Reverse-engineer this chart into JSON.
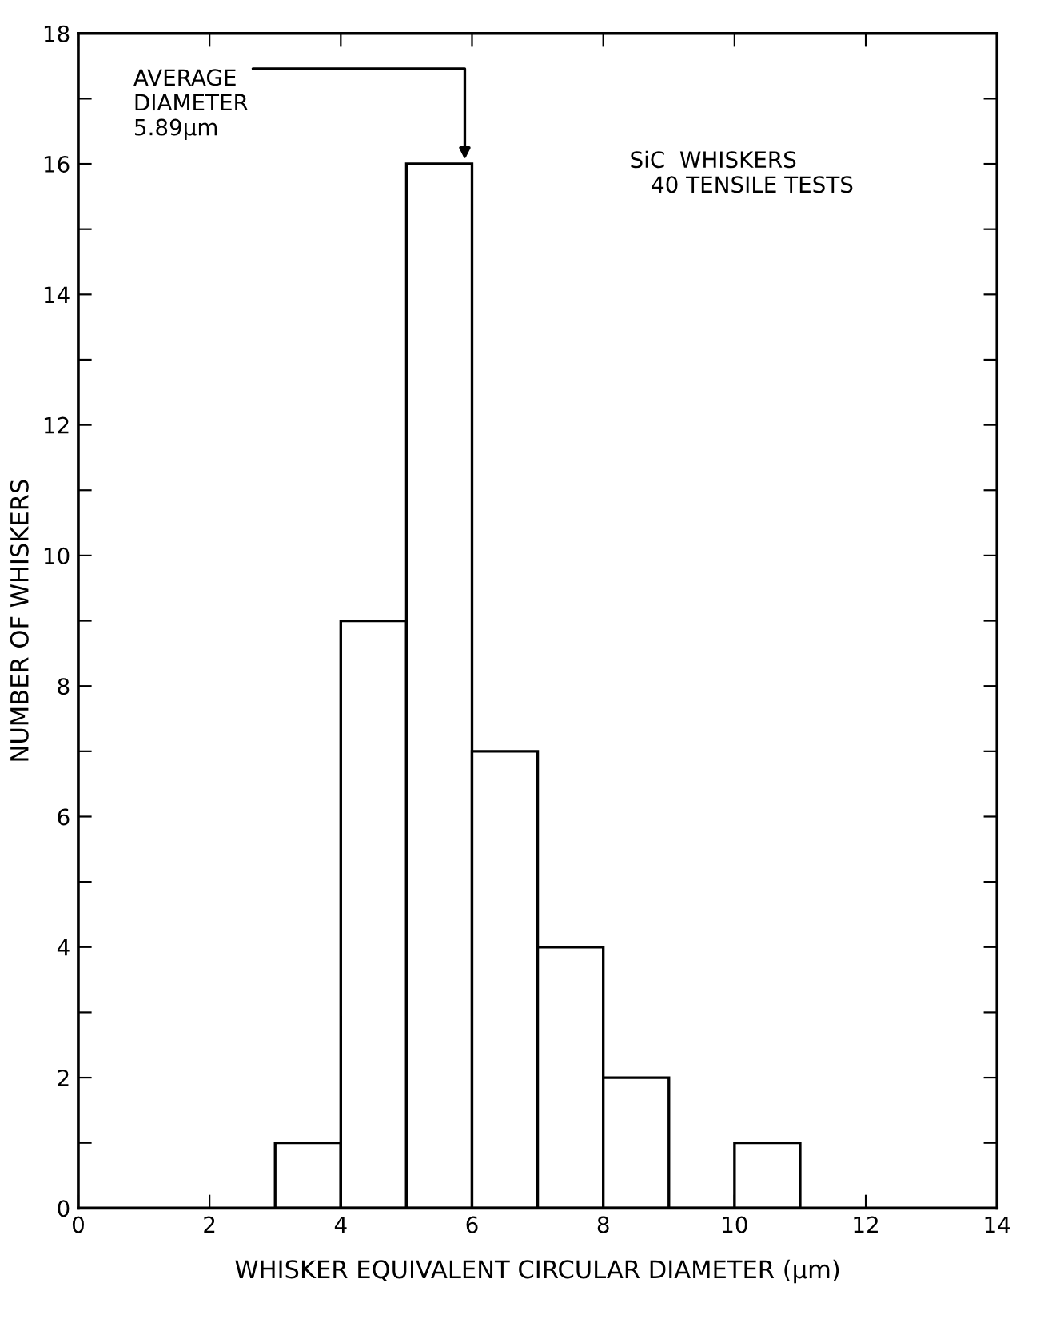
{
  "chart_data": {
    "type": "histogram",
    "xlabel": "WHISKER EQUIVALENT CIRCULAR DIAMETER (μm)",
    "ylabel": "NUMBER OF WHISKERS",
    "bins": [
      3,
      4,
      5,
      6,
      7,
      8,
      9,
      10,
      11
    ],
    "values": [
      1,
      9,
      16,
      7,
      4,
      2,
      0,
      1
    ],
    "color": "#ffffff",
    "xlim": [
      0,
      14
    ],
    "xticks": [
      0,
      2,
      4,
      6,
      8,
      10,
      12,
      14
    ],
    "ylim": [
      0,
      18
    ],
    "yticks": [
      0,
      {
        "value": 1,
        "label": null
      },
      2,
      {
        "value": 3,
        "label": null
      },
      4,
      {
        "value": 5,
        "label": null
      },
      6,
      {
        "value": 7,
        "label": null
      },
      8,
      {
        "value": 9,
        "label": null
      },
      10,
      {
        "value": 11,
        "label": null
      },
      12,
      {
        "value": 13,
        "label": null
      },
      14,
      {
        "value": 15,
        "label": null
      },
      16,
      {
        "value": 17,
        "label": null
      },
      18
    ],
    "grid": false,
    "annotations": [
      {
        "text": "AVERAGE\nDIAMETER\n5.89μm",
        "x": 5.89,
        "y": 16
      },
      "SiC  WHISKERS\n   40 TENSILE TESTS"
    ]
  }
}
